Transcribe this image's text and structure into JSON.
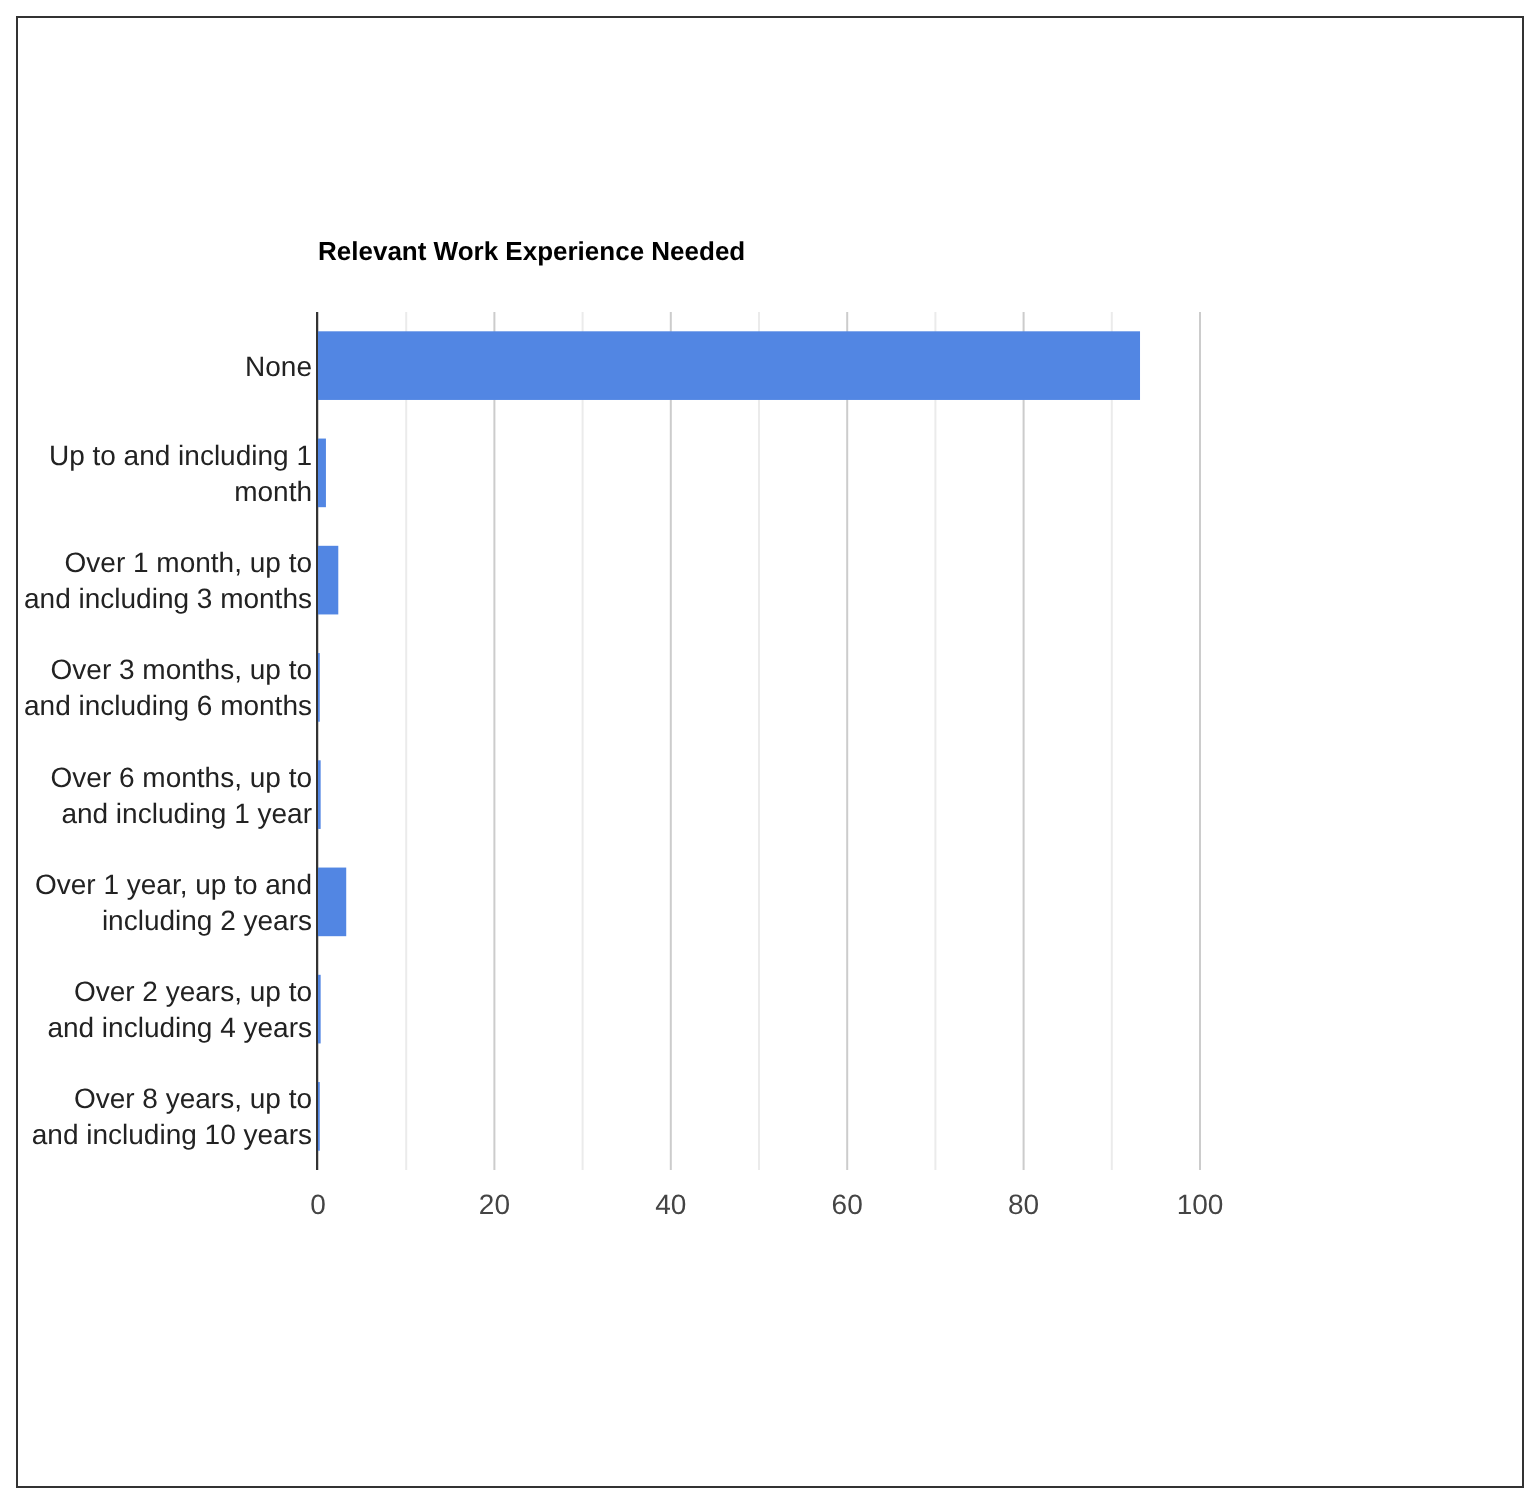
{
  "chart_data": {
    "type": "bar",
    "orientation": "horizontal",
    "title": "Relevant Work Experience Needed",
    "categories": [
      "None",
      "Up to and including 1 month",
      "Over 1 month, up to and including 3 months",
      "Over 3 months, up to and including 6 months",
      "Over 6 months, up to and including 1 year",
      "Over 1 year, up to and including 2 years",
      "Over 2 years, up to and including 4 years",
      "Over 8 years, up to and including 10 years"
    ],
    "values": [
      93.2,
      0.9,
      2.3,
      0.2,
      0.3,
      3.2,
      0.3,
      0.2
    ],
    "color": "#5286e3",
    "xlim": [
      0,
      100
    ],
    "xticks": [
      0,
      {
        "value": 10,
        "label": null
      },
      20,
      {
        "value": 30,
        "label": null
      },
      40,
      {
        "value": 50,
        "label": null
      },
      60,
      {
        "value": 70,
        "label": null
      },
      80,
      {
        "value": 90,
        "label": null
      },
      100
    ],
    "grid": "x"
  }
}
